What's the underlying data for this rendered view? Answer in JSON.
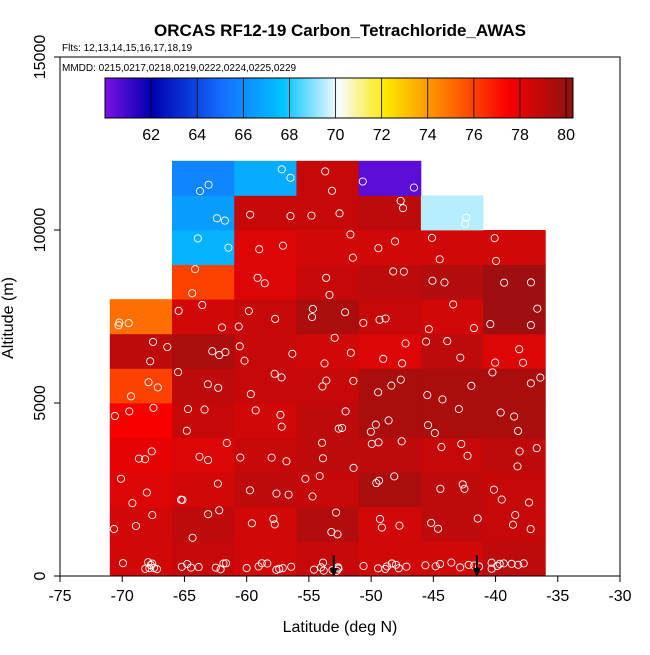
{
  "chart_data": {
    "type": "heatmap",
    "title": "ORCAS RF12-19 Carbon_Tetrachloride_AWAS",
    "flights_label": "Flts: 12,13,14,15,16,17,18,19",
    "dates_label": "MMDD: 0215,0217,0218,0219,0222,0224,0225,0229",
    "xlabel": "Latitude (deg N)",
    "ylabel": "Altitude (m)",
    "xlim": [
      -75,
      -30
    ],
    "ylim": [
      0,
      15000
    ],
    "x_ticks": [
      -75,
      -70,
      -65,
      -60,
      -55,
      -50,
      -45,
      -40,
      -35,
      -30
    ],
    "x_tick_labels": [
      "-75",
      "-70",
      "-65",
      "-60",
      "-55",
      "-50",
      "-45",
      "-40",
      "-35",
      "-30"
    ],
    "y_ticks": [
      0,
      5000,
      10000,
      15000
    ],
    "y_tick_labels": [
      "0",
      "5000",
      "10000",
      "15000"
    ],
    "colorbar": {
      "range": [
        60,
        80.3
      ],
      "ticks": [
        62,
        64,
        66,
        68,
        70,
        72,
        74,
        76,
        78,
        80
      ],
      "tick_labels": [
        "62",
        "64",
        "66",
        "68",
        "70",
        "72",
        "74",
        "76",
        "78",
        "80"
      ]
    },
    "lon_bin_edges": [
      -71,
      -66,
      -61,
      -56,
      -51,
      -46,
      -41,
      -36
    ],
    "alt_bin_edges": [
      0,
      1000,
      2000,
      3000,
      4000,
      5000,
      6000,
      7000,
      8000,
      9000,
      10000,
      11000,
      12000
    ],
    "cells": [
      [
        0,
        0,
        78.5
      ],
      [
        0,
        1,
        78.8
      ],
      [
        0,
        2,
        78.5
      ],
      [
        0,
        3,
        78.8
      ],
      [
        0,
        4,
        78.5
      ],
      [
        0,
        5,
        78.5
      ],
      [
        0,
        6,
        79.0
      ],
      [
        1,
        0,
        78.5
      ],
      [
        1,
        1,
        79.0
      ],
      [
        1,
        2,
        78.5
      ],
      [
        1,
        3,
        79.3
      ],
      [
        1,
        4,
        78.5
      ],
      [
        1,
        5,
        79.0
      ],
      [
        1,
        6,
        78.8
      ],
      [
        2,
        0,
        78.2
      ],
      [
        2,
        1,
        78.5
      ],
      [
        2,
        2,
        79.0
      ],
      [
        2,
        3,
        78.8
      ],
      [
        2,
        4,
        79.5
      ],
      [
        2,
        5,
        79.0
      ],
      [
        2,
        6,
        78.8
      ],
      [
        3,
        0,
        78.0
      ],
      [
        3,
        1,
        78.2
      ],
      [
        3,
        2,
        78.8
      ],
      [
        3,
        3,
        79.0
      ],
      [
        3,
        4,
        79.0
      ],
      [
        3,
        5,
        78.8
      ],
      [
        3,
        6,
        79.0
      ],
      [
        4,
        0,
        77.5
      ],
      [
        4,
        1,
        78.8
      ],
      [
        4,
        2,
        78.5
      ],
      [
        4,
        3,
        79.0
      ],
      [
        4,
        4,
        79.5
      ],
      [
        4,
        5,
        79.5
      ],
      [
        4,
        6,
        79.5
      ],
      [
        5,
        0,
        76.0
      ],
      [
        5,
        1,
        79.0
      ],
      [
        5,
        2,
        78.8
      ],
      [
        5,
        3,
        78.8
      ],
      [
        5,
        4,
        79.5
      ],
      [
        5,
        5,
        79.5
      ],
      [
        5,
        6,
        79.5
      ],
      [
        6,
        0,
        79.0
      ],
      [
        6,
        1,
        79.5
      ],
      [
        6,
        2,
        78.8
      ],
      [
        6,
        3,
        78.5
      ],
      [
        6,
        4,
        78.2
      ],
      [
        6,
        5,
        79.0
      ],
      [
        6,
        6,
        78.2
      ],
      [
        7,
        0,
        75.0
      ],
      [
        7,
        1,
        78.5
      ],
      [
        7,
        2,
        78.8
      ],
      [
        7,
        3,
        79.5
      ],
      [
        7,
        4,
        78.8
      ],
      [
        7,
        5,
        78.5
      ],
      [
        7,
        6,
        79.8
      ],
      [
        8,
        1,
        76.0
      ],
      [
        8,
        2,
        78.2
      ],
      [
        8,
        3,
        78.8
      ],
      [
        8,
        4,
        79.0
      ],
      [
        8,
        5,
        79.3
      ],
      [
        8,
        6,
        79.8
      ],
      [
        9,
        1,
        67.2
      ],
      [
        9,
        2,
        78.2
      ],
      [
        9,
        3,
        78.5
      ],
      [
        9,
        4,
        78.5
      ],
      [
        9,
        5,
        78.5
      ],
      [
        9,
        6,
        78.5
      ],
      [
        10,
        1,
        66.5
      ],
      [
        10,
        2,
        78.8
      ],
      [
        10,
        3,
        78.8
      ],
      [
        10,
        4,
        79.0
      ],
      [
        10,
        5,
        69.5
      ],
      [
        11,
        1,
        65.8
      ],
      [
        11,
        2,
        67.0
      ],
      [
        11,
        3,
        78.8
      ],
      [
        11,
        4,
        60.5
      ]
    ],
    "arrows": [
      {
        "x": -53,
        "y_start": 600,
        "y_end": 0
      },
      {
        "x": -41.5,
        "y_start": 600,
        "y_end": 0
      }
    ]
  },
  "colors": {
    "axis": "#000000",
    "marker_stroke": "#ffffff"
  }
}
